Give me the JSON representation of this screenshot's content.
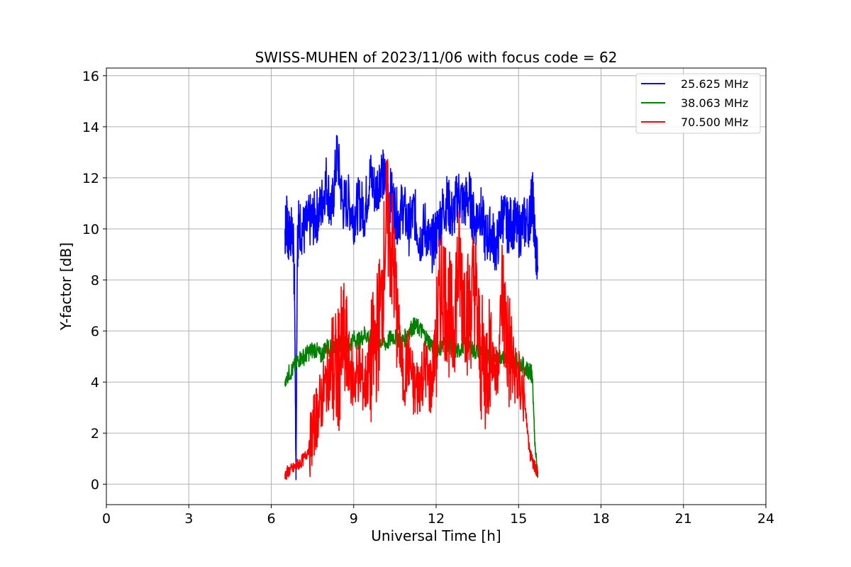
{
  "chart_data": {
    "type": "line",
    "title": "SWISS-MUHEN of 2023/11/06 with focus code = 62",
    "xlabel": "Universal Time [h]",
    "ylabel": "Y-factor [dB]",
    "xlim": [
      0,
      24
    ],
    "ylim": [
      -0.8,
      16.3
    ],
    "xticks": [
      0,
      3,
      6,
      9,
      12,
      15,
      18,
      21,
      24
    ],
    "yticks": [
      0,
      2,
      4,
      6,
      8,
      10,
      12,
      14,
      16
    ],
    "grid": true,
    "legend_position": "top-right",
    "series": [
      {
        "name": "25.625 MHz",
        "color": "#0000ff",
        "x": [
          6.5,
          6.55,
          6.6,
          6.7,
          6.8,
          6.85,
          6.9,
          6.95,
          7.0,
          7.2,
          7.4,
          7.6,
          7.8,
          8.0,
          8.2,
          8.4,
          8.6,
          8.8,
          9.0,
          9.2,
          9.4,
          9.6,
          9.8,
          10.0,
          10.2,
          10.4,
          10.6,
          10.8,
          11.0,
          11.2,
          11.4,
          11.6,
          11.8,
          12.0,
          12.2,
          12.4,
          12.6,
          12.8,
          13.0,
          13.2,
          13.4,
          13.6,
          13.8,
          14.0,
          14.2,
          14.4,
          14.6,
          14.8,
          15.0,
          15.2,
          15.4,
          15.5,
          15.6,
          15.7
        ],
        "y": [
          9.8,
          10.5,
          9.6,
          10.0,
          9.5,
          7.5,
          0.1,
          9.4,
          10.2,
          9.9,
          10.3,
          10.4,
          10.8,
          11.9,
          10.6,
          13.0,
          10.9,
          11.1,
          10.5,
          11.0,
          10.7,
          12.1,
          11.4,
          12.3,
          11.6,
          11.2,
          10.4,
          10.9,
          10.0,
          10.7,
          9.6,
          10.1,
          9.2,
          9.8,
          10.6,
          11.1,
          10.4,
          11.4,
          10.9,
          11.3,
          10.2,
          10.8,
          9.6,
          9.9,
          9.2,
          10.6,
          10.1,
          10.3,
          9.9,
          10.2,
          10.4,
          11.4,
          9.5,
          8.4
        ]
      },
      {
        "name": "38.063 MHz",
        "color": "#008000",
        "x": [
          6.5,
          6.6,
          6.8,
          7.0,
          7.2,
          7.4,
          7.6,
          7.8,
          8.0,
          8.2,
          8.4,
          8.6,
          8.8,
          9.0,
          9.2,
          9.4,
          9.6,
          9.8,
          10.0,
          10.2,
          10.4,
          10.6,
          10.8,
          11.0,
          11.2,
          11.4,
          11.6,
          11.8,
          12.0,
          12.2,
          12.4,
          12.6,
          12.8,
          13.0,
          13.2,
          13.4,
          13.6,
          13.8,
          14.0,
          14.2,
          14.4,
          14.6,
          14.8,
          15.0,
          15.2,
          15.4,
          15.5,
          15.6,
          15.7
        ],
        "y": [
          3.9,
          4.3,
          4.5,
          4.9,
          5.0,
          5.2,
          5.3,
          5.0,
          5.4,
          5.3,
          5.6,
          5.5,
          5.4,
          5.7,
          5.6,
          5.9,
          5.7,
          5.8,
          5.6,
          5.5,
          5.8,
          5.7,
          5.6,
          6.0,
          6.2,
          6.1,
          5.8,
          5.5,
          5.3,
          5.4,
          5.6,
          5.3,
          5.2,
          5.5,
          5.4,
          5.2,
          5.3,
          5.1,
          5.0,
          4.9,
          5.1,
          4.8,
          4.9,
          4.8,
          4.6,
          4.4,
          4.3,
          1.4,
          0.4
        ]
      },
      {
        "name": "70.500 MHz",
        "color": "#ff0000",
        "x": [
          6.5,
          6.6,
          6.8,
          7.0,
          7.2,
          7.4,
          7.6,
          7.8,
          8.0,
          8.2,
          8.4,
          8.6,
          8.8,
          9.0,
          9.2,
          9.4,
          9.6,
          9.8,
          10.0,
          10.2,
          10.4,
          10.6,
          10.8,
          11.0,
          11.2,
          11.4,
          11.6,
          11.8,
          12.0,
          12.2,
          12.4,
          12.6,
          12.8,
          13.0,
          13.2,
          13.4,
          13.6,
          13.8,
          14.0,
          14.2,
          14.4,
          14.6,
          14.8,
          15.0,
          15.2,
          15.4,
          15.5,
          15.6,
          15.7
        ],
        "y": [
          0.3,
          0.5,
          0.6,
          0.8,
          1.0,
          1.5,
          2.5,
          3.2,
          4.0,
          4.5,
          4.2,
          5.5,
          4.8,
          4.0,
          4.5,
          3.8,
          4.6,
          5.5,
          7.0,
          10.5,
          9.0,
          6.5,
          4.0,
          5.0,
          3.6,
          4.0,
          4.6,
          3.8,
          5.5,
          8.0,
          7.0,
          6.0,
          8.5,
          7.5,
          6.5,
          8.0,
          5.0,
          4.5,
          5.5,
          4.0,
          7.5,
          5.5,
          4.6,
          4.0,
          3.5,
          1.2,
          0.9,
          0.7,
          0.4
        ]
      }
    ]
  }
}
